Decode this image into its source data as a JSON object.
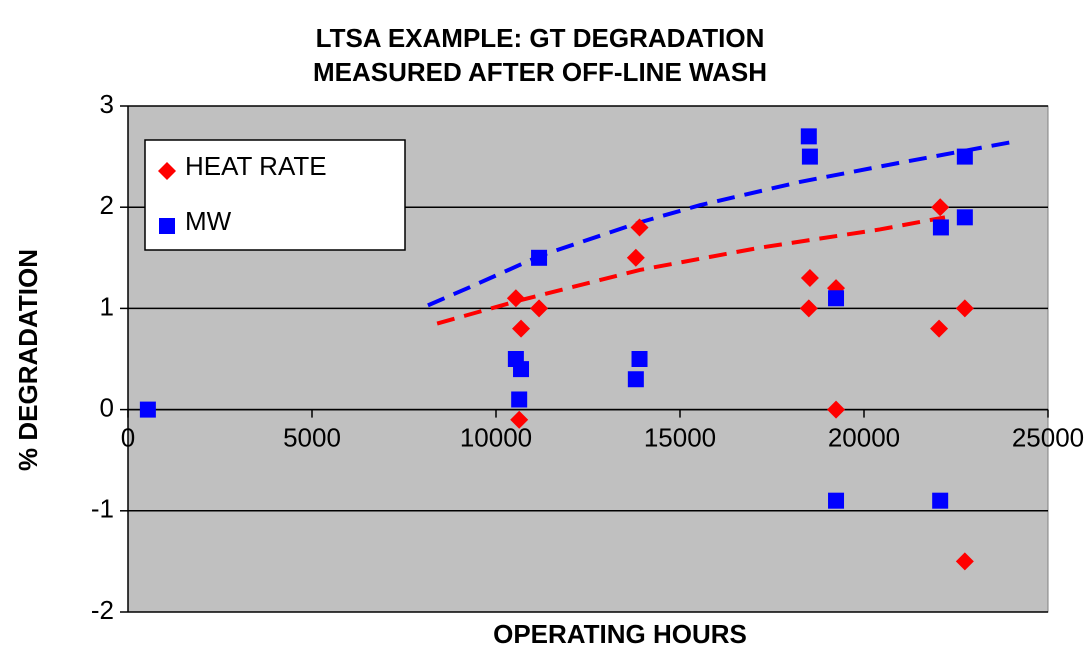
{
  "chart_data": {
    "type": "scatter",
    "title": [
      "LTSA EXAMPLE: GT DEGRADATION",
      "MEASURED AFTER OFF-LINE WASH"
    ],
    "x_label": "OPERATING HOURS",
    "y_label": "% DEGRADATION",
    "xlim": [
      0,
      25000
    ],
    "xticks": [
      0,
      5000,
      10000,
      15000,
      20000,
      25000
    ],
    "ylim": [
      -2,
      3
    ],
    "yticks": [
      -2,
      -1,
      0,
      1,
      2,
      3
    ],
    "grid": true,
    "legend": "upper left",
    "series": [
      {
        "name": "HEAT RATE",
        "color": "#ff0000",
        "marker": "diamond",
        "x": [
          10540,
          10680,
          10630,
          11170,
          13800,
          13900,
          18530,
          18500,
          19240,
          19240,
          22070,
          22040,
          22740,
          22740
        ],
        "values": [
          1.1,
          0.8,
          -0.1,
          1.0,
          1.5,
          1.8,
          1.3,
          1.0,
          1.2,
          0,
          2.0,
          0.8,
          1.0,
          -1.5
        ]
      },
      {
        "name": "MW",
        "color": "#0000ff",
        "marker": "square",
        "x": [
          540,
          10540,
          10680,
          10630,
          11170,
          13800,
          13900,
          18500,
          18530,
          19240,
          19240,
          22070,
          22090,
          22740,
          22740
        ],
        "values": [
          0,
          0.5,
          0.4,
          0.1,
          1.5,
          0.3,
          0.5,
          2.7,
          2.5,
          1.1,
          -0.9,
          -0.9,
          1.8,
          2.5,
          1.9
        ]
      }
    ],
    "trendlines": [
      {
        "color": "#0000ff",
        "x": [
          8150,
          9290,
          11200,
          13910,
          15540,
          18260,
          20980,
          23970
        ],
        "values": [
          1.03,
          1.21,
          1.52,
          1.85,
          2.02,
          2.25,
          2.44,
          2.64
        ]
      },
      {
        "color": "#ff0000",
        "x": [
          8400,
          10650,
          13910,
          17170,
          20430,
          22200
        ],
        "values": [
          0.85,
          1.08,
          1.38,
          1.6,
          1.78,
          1.9
        ]
      }
    ]
  }
}
